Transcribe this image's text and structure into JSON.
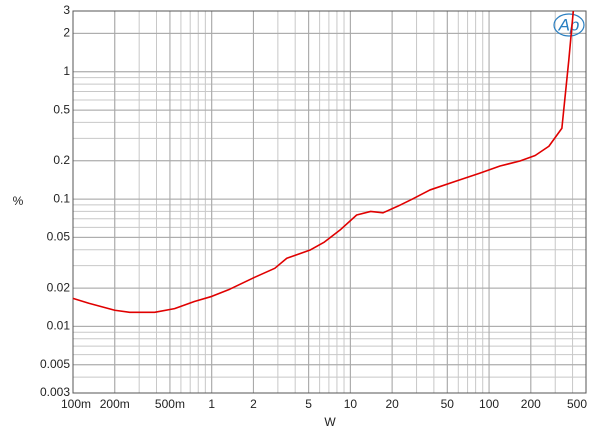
{
  "chart_data": {
    "type": "line",
    "logo": "Ap",
    "x_label": "W",
    "y_label": "%",
    "x": [
      0.1,
      0.13,
      0.2,
      0.256,
      0.388,
      0.54,
      0.75,
      1,
      1.35,
      2.04,
      2.85,
      3.48,
      5.1,
      6.5,
      8.4,
      11.1,
      14,
      17.2,
      22,
      28,
      37.5,
      58.5,
      86,
      120,
      167,
      215,
      270,
      335,
      376,
      405
    ],
    "series": [
      {
        "color": "#e00000",
        "values": [
          0.0166,
          0.0152,
          0.0134,
          0.0129,
          0.0129,
          0.0138,
          0.0157,
          0.0172,
          0.0196,
          0.0243,
          0.0286,
          0.0343,
          0.0397,
          0.046,
          0.057,
          0.075,
          0.08,
          0.078,
          0.088,
          0.1,
          0.118,
          0.139,
          0.16,
          0.182,
          0.199,
          0.22,
          0.26,
          0.36,
          1.24,
          3
        ]
      }
    ],
    "xlim": [
      0.1,
      500
    ],
    "ylim": [
      0.003,
      3
    ],
    "xlog": true,
    "ylog": true,
    "grid": true,
    "xticks": [
      {
        "value": 0.1,
        "label": "100m"
      },
      {
        "value": 0.2,
        "label": "200m"
      },
      {
        "value": 0.5,
        "label": "500m"
      },
      1,
      2,
      5,
      10,
      20,
      50,
      100,
      200,
      500
    ],
    "yticks": [
      0.003,
      0.005,
      0.01,
      0.02,
      0.05,
      0.1,
      0.2,
      0.5,
      1,
      2,
      3
    ]
  }
}
